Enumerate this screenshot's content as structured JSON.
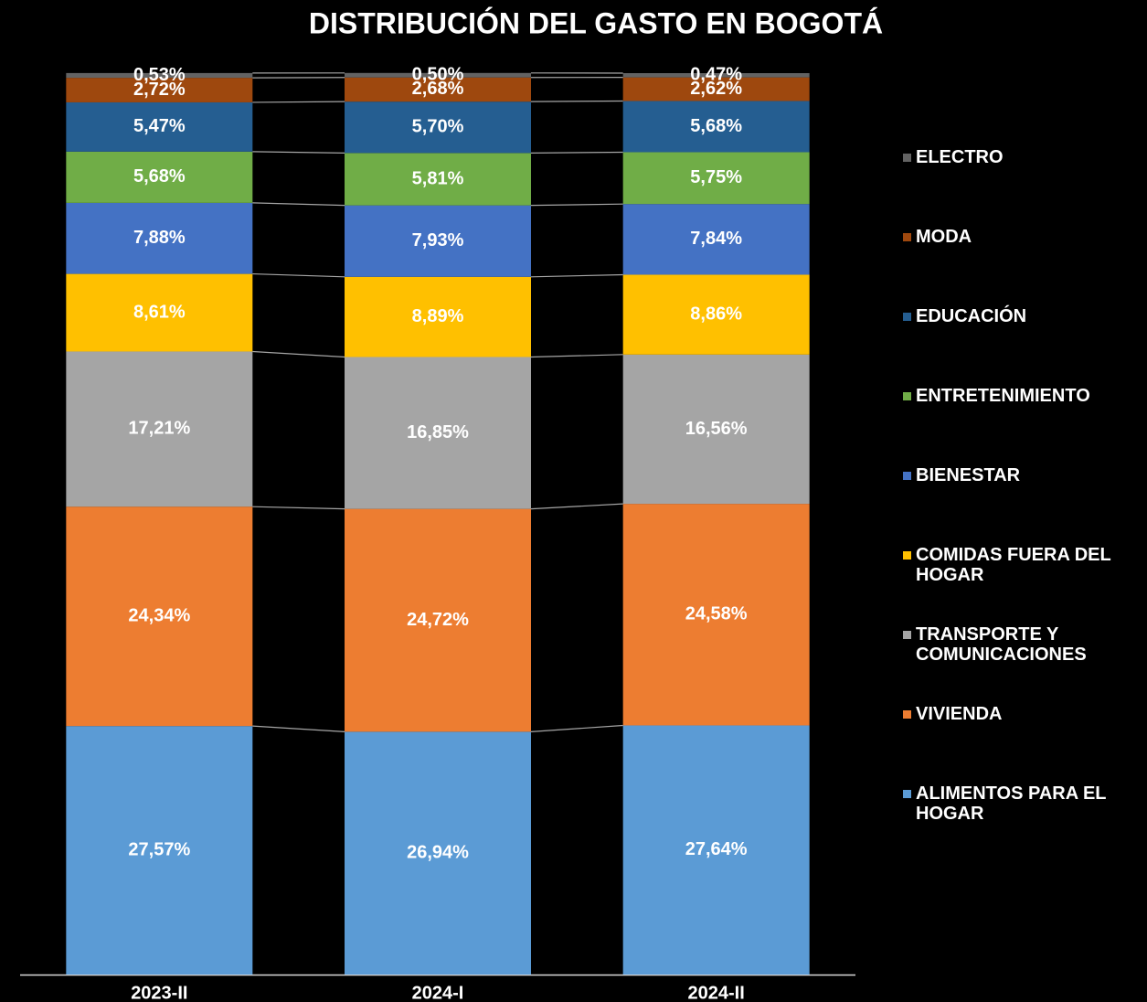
{
  "chart_data": {
    "type": "stacked_bar",
    "title": "DISTRIBUCIÓN DEL GASTO EN BOGOTÁ",
    "categories": [
      "2023-II",
      "2024-I",
      "2024-II"
    ],
    "ylim": [
      0,
      100
    ],
    "series": [
      {
        "name": "ALIMENTOS PARA EL HOGAR",
        "color": "#5b9bd5",
        "values": [
          27.57,
          26.94,
          27.64
        ],
        "value_labels": [
          "27,57%",
          "26,94%",
          "27,64%"
        ]
      },
      {
        "name": "VIVIENDA",
        "color": "#ed7d31",
        "values": [
          24.34,
          24.72,
          24.58
        ],
        "value_labels": [
          "24,34%",
          "24,72%",
          "24,58%"
        ]
      },
      {
        "name": "TRANSPORTE Y COMUNICACIONES",
        "color": "#a5a5a5",
        "values": [
          17.21,
          16.85,
          16.56
        ],
        "value_labels": [
          "17,21%",
          "16,85%",
          "16,56%"
        ]
      },
      {
        "name": "COMIDAS FUERA DEL HOGAR",
        "color": "#ffc000",
        "values": [
          8.61,
          8.89,
          8.86
        ],
        "value_labels": [
          "8,61%",
          "8,89%",
          "8,86%"
        ]
      },
      {
        "name": "BIENESTAR",
        "color": "#4472c4",
        "values": [
          7.88,
          7.93,
          7.84
        ],
        "value_labels": [
          "7,88%",
          "7,93%",
          "7,84%"
        ]
      },
      {
        "name": "ENTRETENIMIENTO",
        "color": "#70ad47",
        "values": [
          5.68,
          5.81,
          5.75
        ],
        "value_labels": [
          "5,68%",
          "5,81%",
          "5,75%"
        ]
      },
      {
        "name": "EDUCACIÓN",
        "color": "#255e91",
        "values": [
          5.47,
          5.7,
          5.68
        ],
        "value_labels": [
          "5,47%",
          "5,70%",
          "5,68%"
        ]
      },
      {
        "name": "MODA",
        "color": "#9e480e",
        "values": [
          2.72,
          2.68,
          2.62
        ],
        "value_labels": [
          "2,72%",
          "2,68%",
          "2,62%"
        ]
      },
      {
        "name": "ELECTRO",
        "color": "#636363",
        "values": [
          0.53,
          0.5,
          0.47
        ],
        "value_labels": [
          "0,53%",
          "0,50%",
          "0,47%"
        ]
      }
    ]
  }
}
